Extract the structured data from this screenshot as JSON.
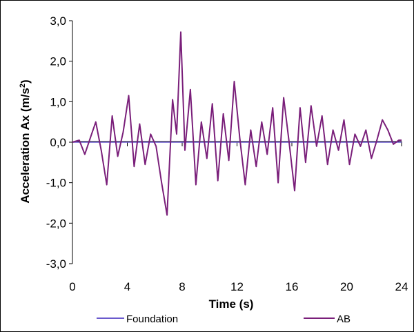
{
  "chart_data": {
    "type": "line",
    "xlabel": "Time (s)",
    "ylabel": "Acceleration Ax (m/s²)",
    "ylabel_main": "Acceleration Ax (m/s",
    "ylabel_sup": "2",
    "ylabel_end": ")",
    "xlim": [
      0,
      24
    ],
    "ylim": [
      -3.0,
      3.0
    ],
    "x_ticks": [
      "0",
      "4",
      "8",
      "12",
      "16",
      "20",
      "24"
    ],
    "y_ticks": [
      "3,0",
      "2,0",
      "1,0",
      "0,0",
      "-1,0",
      "-2,0",
      "-3,0"
    ],
    "grid": false,
    "legend_placement": "bottom",
    "colors": {
      "Foundation": "#6a5acd",
      "AB": "#7a1f7a"
    },
    "legend": [
      "Foundation",
      "AB"
    ],
    "series": [
      {
        "name": "Foundation",
        "x": [
          0,
          24
        ],
        "y": [
          0.0,
          0.0
        ]
      },
      {
        "name": "AB",
        "x": [
          0,
          0.5,
          0.9,
          1.3,
          1.7,
          2.1,
          2.5,
          2.9,
          3.3,
          3.7,
          4.1,
          4.5,
          4.9,
          5.3,
          5.7,
          6.1,
          6.5,
          6.9,
          7.3,
          7.6,
          7.9,
          8.2,
          8.6,
          9.0,
          9.4,
          9.8,
          10.2,
          10.6,
          11.0,
          11.4,
          11.8,
          12.2,
          12.6,
          13.0,
          13.4,
          13.8,
          14.2,
          14.6,
          15.0,
          15.4,
          15.8,
          16.2,
          16.6,
          17.0,
          17.4,
          17.8,
          18.2,
          18.6,
          19.0,
          19.4,
          19.8,
          20.2,
          20.6,
          21.0,
          21.4,
          21.8,
          22.2,
          22.6,
          23.0,
          23.4,
          23.8,
          24.0
        ],
        "y": [
          0.0,
          0.05,
          -0.3,
          0.1,
          0.5,
          -0.2,
          -1.05,
          0.65,
          -0.35,
          0.25,
          1.15,
          -0.6,
          0.45,
          -0.55,
          0.2,
          -0.1,
          -1.0,
          -1.8,
          1.05,
          0.2,
          2.72,
          -0.2,
          1.3,
          -1.05,
          0.5,
          -0.4,
          0.95,
          -0.95,
          0.7,
          -0.45,
          1.5,
          0.1,
          -1.05,
          0.3,
          -0.6,
          0.5,
          -0.3,
          0.85,
          -1.0,
          1.1,
          0.0,
          -1.2,
          0.85,
          -0.5,
          0.9,
          -0.1,
          0.65,
          -0.55,
          0.3,
          -0.2,
          0.55,
          -0.55,
          0.2,
          -0.1,
          0.3,
          -0.4,
          0.05,
          0.55,
          0.3,
          -0.05,
          0.05,
          0.05
        ]
      }
    ]
  }
}
